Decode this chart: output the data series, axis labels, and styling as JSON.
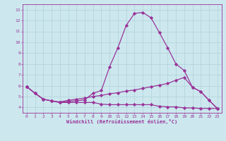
{
  "x": [
    0,
    1,
    2,
    3,
    4,
    5,
    6,
    7,
    8,
    9,
    10,
    11,
    12,
    13,
    14,
    15,
    16,
    17,
    18,
    19,
    20,
    21,
    22,
    23
  ],
  "line1": [
    5.9,
    5.3,
    4.75,
    4.6,
    4.45,
    4.55,
    4.6,
    4.7,
    5.3,
    5.55,
    7.75,
    9.5,
    11.55,
    12.65,
    12.75,
    12.25,
    10.9,
    9.5,
    8.0,
    7.4,
    5.85,
    5.45,
    4.65,
    3.9
  ],
  "line2": [
    5.9,
    5.3,
    4.75,
    4.6,
    4.5,
    4.65,
    4.75,
    4.85,
    5.0,
    5.1,
    5.25,
    5.35,
    5.5,
    5.6,
    5.75,
    5.9,
    6.05,
    6.2,
    6.5,
    6.75,
    5.85,
    5.45,
    4.65,
    3.9
  ],
  "line3": [
    5.9,
    5.3,
    4.75,
    4.6,
    4.45,
    4.45,
    4.45,
    4.45,
    4.45,
    4.3,
    4.25,
    4.25,
    4.25,
    4.25,
    4.25,
    4.25,
    4.1,
    4.05,
    4.05,
    3.95,
    3.95,
    3.9,
    3.9,
    3.9
  ],
  "line_color": "#993399",
  "bg_color": "#cce8ee",
  "grid_color": "#b0d0d8",
  "xlabel": "Windchill (Refroidissement éolien,°C)",
  "ylim": [
    3.5,
    13.5
  ],
  "xlim": [
    -0.5,
    23.5
  ],
  "yticks": [
    4,
    5,
    6,
    7,
    8,
    9,
    10,
    11,
    12,
    13
  ],
  "xticks": [
    0,
    1,
    2,
    3,
    4,
    5,
    6,
    7,
    8,
    9,
    10,
    11,
    12,
    13,
    14,
    15,
    16,
    17,
    18,
    19,
    20,
    21,
    22,
    23
  ],
  "marker": "D",
  "markersize": 2.2,
  "linewidth": 0.9
}
